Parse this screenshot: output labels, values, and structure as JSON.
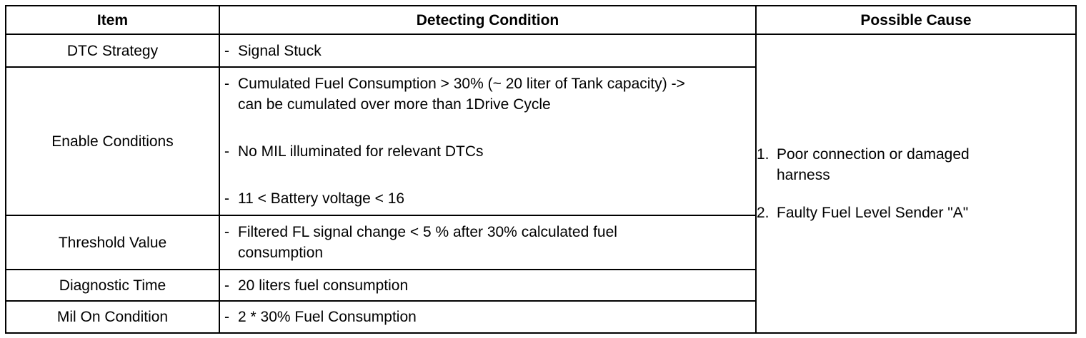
{
  "headers": {
    "item": "Item",
    "condition": "Detecting Condition",
    "cause": "Possible Cause"
  },
  "rows": [
    {
      "item": "DTC Strategy",
      "conditions": [
        "Signal Stuck"
      ]
    },
    {
      "item": "Enable Conditions",
      "conditions": [
        "Cumulated Fuel Consumption > 30% (~ 20 liter of Tank capacity) -> can be cumulated over more than 1Drive Cycle",
        "No MIL illuminated for relevant DTCs",
        "11 < Battery voltage < 16"
      ]
    },
    {
      "item": "Threshold Value",
      "conditions": [
        "Filtered FL signal change < 5 % after 30% calculated fuel consumption"
      ]
    },
    {
      "item": "Diagnostic Time",
      "conditions": [
        "20 liters fuel consumption"
      ]
    },
    {
      "item": "Mil On Condition",
      "conditions": [
        "2 * 30% Fuel Consumption"
      ]
    }
  ],
  "dash": "-",
  "possible_causes": [
    {
      "number": "1.",
      "text": "Poor connection or damaged harness"
    },
    {
      "number": "2.",
      "text": "Faulty Fuel Level Sender \"A\""
    }
  ]
}
